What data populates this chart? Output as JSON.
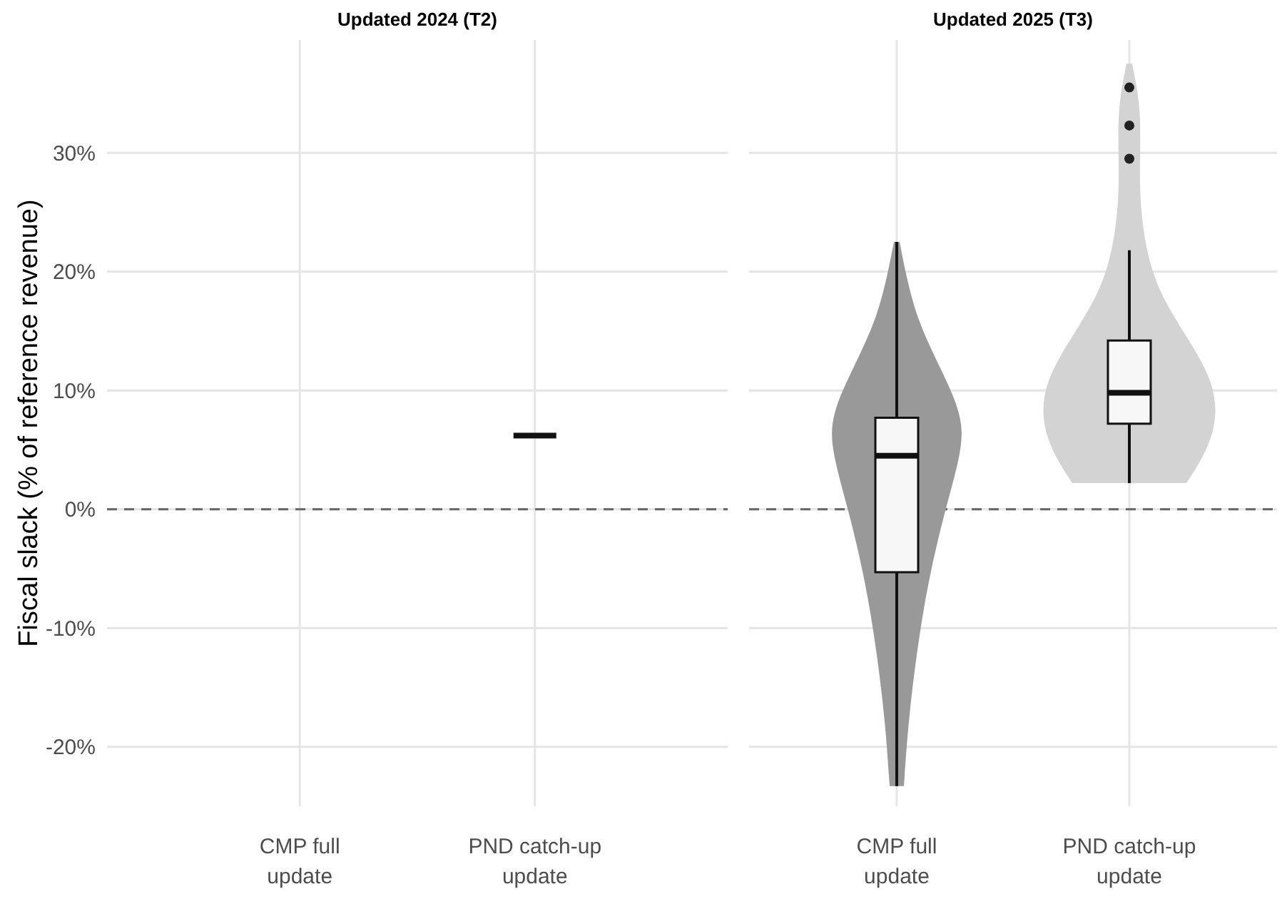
{
  "chart_data": [
    {
      "type": "box",
      "title": "Updated 2024 (T2)",
      "ylabel": "Fiscal slack (% of reference revenue)",
      "categories": [
        "CMP full update",
        "PND catch-up update"
      ],
      "boxes": [
        null,
        {
          "low": 6.2,
          "q1": 6.2,
          "median": 6.2,
          "q3": 6.2,
          "high": 6.2
        }
      ],
      "ylim": [
        -25,
        39.5
      ],
      "yticks": [
        {
          "value": -20,
          "label": "-20%"
        },
        {
          "value": -10,
          "label": "-10%"
        },
        {
          "value": 0,
          "label": "0%"
        },
        {
          "value": 10,
          "label": "10%"
        },
        {
          "value": 20,
          "label": "20%"
        },
        {
          "value": 30,
          "label": "30%"
        }
      ],
      "grid": true,
      "ref_lines": [
        {
          "axis": "y",
          "value": 0,
          "line_style": "dashed",
          "color": "#666666"
        }
      ]
    },
    {
      "type": "box",
      "title": "Updated 2025 (T3)",
      "categories": [
        "CMP full update",
        "PND catch-up update"
      ],
      "boxes": [
        {
          "low": -23.3,
          "q1": -5.3,
          "median": 4.5,
          "q3": 7.7,
          "high": 22.5
        },
        {
          "low": 2.2,
          "q1": 7.2,
          "median": 9.8,
          "q3": 14.2,
          "high": 21.8,
          "outliers": [
            29.5,
            32.3,
            35.5
          ]
        }
      ],
      "colors": [
        "#f7f7f7",
        "#f7f7f7"
      ],
      "ylim": [
        -25,
        39.5
      ],
      "yticks": [
        {
          "value": -20,
          "label": null
        },
        {
          "value": -10,
          "label": null
        },
        {
          "value": 0,
          "label": null
        },
        {
          "value": 10,
          "label": null
        },
        {
          "value": 20,
          "label": null
        },
        {
          "value": 30,
          "label": null
        }
      ],
      "tick_labels": "x",
      "grid": true,
      "ref_lines": [
        {
          "axis": "y",
          "value": 0,
          "line_style": "dashed",
          "color": "#666666"
        }
      ]
    }
  ]
}
